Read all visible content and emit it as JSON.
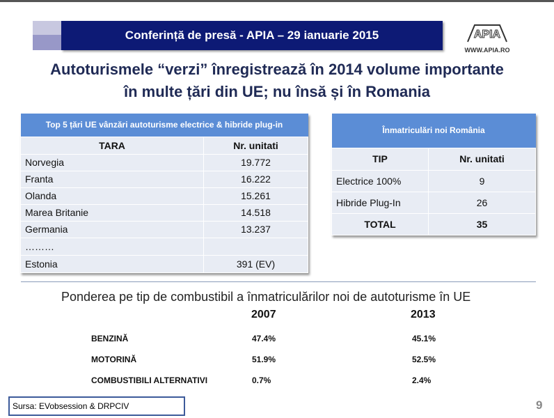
{
  "banner": {
    "text": "Conferință de presă - APIA – 29 ianuarie 2015"
  },
  "logo": {
    "text": "APIA",
    "url": "WWW.APIA.RO"
  },
  "title": {
    "line1": "Autoturismele “verzi” înregistrează în 2014 volume importante",
    "line2": "în multe țări din UE; nu însă și în Romania"
  },
  "table1": {
    "caption": "Top 5 țări UE vânzări autoturisme electrice & hibride plug-in",
    "headers": [
      "TARA",
      "Nr. unitati"
    ],
    "rows": [
      [
        "Norvegia",
        "19.772"
      ],
      [
        "Franta",
        "16.222"
      ],
      [
        "Olanda",
        "15.261"
      ],
      [
        "Marea Britanie",
        "14.518"
      ],
      [
        "Germania",
        "13.237"
      ],
      [
        "………",
        ""
      ],
      [
        "Estonia",
        "391 (EV)"
      ]
    ]
  },
  "table2": {
    "caption": "Înmatriculări noi România",
    "headers": [
      "TIP",
      "Nr. unitati"
    ],
    "rows": [
      [
        "Electrice 100%",
        "9"
      ],
      [
        "Hibride Plug-In",
        "26"
      ],
      [
        "TOTAL",
        "35"
      ]
    ]
  },
  "fuel": {
    "title": "Ponderea pe tip de combustibil a înmatriculărilor noi de autoturisme  în UE",
    "years": [
      "2007",
      "2013"
    ],
    "rows": [
      {
        "label": "BENZINĂ",
        "v2007": "47.4%",
        "v2013": "45.1%"
      },
      {
        "label": "MOTORINĂ",
        "v2007": "51.9%",
        "v2013": "52.5%"
      },
      {
        "label": "COMBUSTIBILI ALTERNATIVI",
        "v2007": "0.7%",
        "v2013": "2.4%"
      }
    ]
  },
  "source": "Sursa: EVobsession & DRPCIV",
  "page_number": "9",
  "colors": {
    "banner": "#0d1a75",
    "table_header": "#5b8dd6",
    "title": "#1f2a55"
  }
}
